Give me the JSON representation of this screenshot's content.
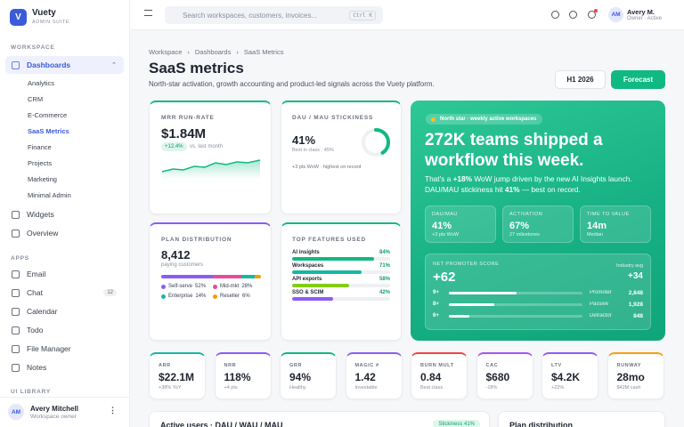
{
  "sidebar": {
    "brand": {
      "logo": "V",
      "name": "Vuety",
      "tagline": "ADMIN SUITE"
    },
    "sections": [
      {
        "title": "WORKSPACE",
        "items": [
          {
            "label": "Dashboards",
            "children": [
              "Analytics",
              "CRM",
              "E-Commerce",
              "SaaS Metrics",
              "Finance",
              "Projects",
              "Marketing",
              "Minimal Admin"
            ]
          },
          {
            "label": "Widgets"
          },
          {
            "label": "Overview"
          }
        ]
      },
      {
        "title": "APPS",
        "items": [
          {
            "label": "Email"
          },
          {
            "label": "Chat",
            "badge": 12
          },
          {
            "label": "Calendar"
          },
          {
            "label": "Todo"
          },
          {
            "label": "File Manager"
          },
          {
            "label": "Notes"
          }
        ]
      },
      {
        "title": "UI LIBRARY"
      }
    ],
    "user": {
      "initials": "AM",
      "name": "Avery Mitchell",
      "role": "Workspace owner"
    }
  },
  "topbar": {
    "search_placeholder": "Search workspaces, customers, invoices...",
    "shortcut": "Ctrl K",
    "user": {
      "initials": "AM",
      "name": "Avery M.",
      "status": "Owner · Active"
    }
  },
  "page": {
    "breadcrumb": [
      "Workspace",
      "Dashboards",
      "SaaS Metrics"
    ],
    "title": "SaaS metrics",
    "subtitle": "North-star activation, growth accounting and product-led signals across the Vuety platform.",
    "period": "H1 2026",
    "action": "Forecast"
  },
  "mrr": {
    "title": "MRR RUN-RATE",
    "value": "$1.84M",
    "change": "+12.4%",
    "note": "vs. last month"
  },
  "stickiness": {
    "title": "DAU / MAU STICKINESS",
    "value": "41%",
    "benchmark": "Best in class · 45%",
    "note": "+3 pts WoW · highest on record"
  },
  "hero": {
    "tag": "North star · weekly active workspaces",
    "headline": "272K teams shipped a workflow this week.",
    "body": [
      "That's a ",
      "+18%",
      " WoW jump driven by the new AI Insights launch. DAU/MAU stickiness hit ",
      "41%",
      " — best on record."
    ],
    "stats": [
      {
        "label": "DAU/MAU",
        "value": "41%",
        "note": "+3 pts WoW"
      },
      {
        "label": "ACTIVATION",
        "value": "67%",
        "note": "27 milestones"
      },
      {
        "label": "TIME TO VALUE",
        "value": "14m",
        "note": "Median"
      }
    ],
    "nps": {
      "title": "NET PROMOTER SCORE",
      "value": "+62",
      "benchmark_label": "Industry avg",
      "benchmark": "+34",
      "rows": [
        {
          "score": "9+",
          "label": "Promoter",
          "count": {
            "value": 2848,
            "label": "2,848"
          }
        },
        {
          "score": "8+",
          "label": "Passive",
          "count": {
            "value": 1928,
            "label": "1,928"
          }
        },
        {
          "score": "6+",
          "label": "Detractor",
          "count": {
            "value": 848,
            "label": "848"
          }
        }
      ]
    }
  },
  "plans": {
    "title": "PLAN DISTRIBUTION",
    "value": "8,412",
    "caption": "paying customers",
    "segments": [
      {
        "name": "Self-serve",
        "value": 52,
        "label": "52%",
        "color": "#8b5cf6"
      },
      {
        "name": "Mid-mkt",
        "value": 28,
        "label": "28%",
        "color": "#ec4899"
      },
      {
        "name": "Enterprise",
        "value": 14,
        "label": "14%",
        "color": "#14b8a6"
      },
      {
        "name": "Reseller",
        "value": 6,
        "label": "6%",
        "color": "#f59e0b"
      }
    ]
  },
  "features": {
    "title": "TOP FEATURES USED",
    "items": [
      {
        "name": "AI insights",
        "value": 84,
        "label": "84%",
        "color": "#10b981"
      },
      {
        "name": "Workspaces",
        "value": 71,
        "label": "71%",
        "color": "#14b8a6"
      },
      {
        "name": "API exports",
        "value": 58,
        "label": "58%",
        "color": "#84cc16"
      },
      {
        "name": "SSO & SCIM",
        "value": 42,
        "label": "42%",
        "color": "#8b5cf6"
      }
    ]
  },
  "kpis": [
    {
      "label": "ARR",
      "value": "$22.1M",
      "note": "+38% YoY",
      "color": "#14b8a6"
    },
    {
      "label": "NRR",
      "value": "118%",
      "note": "+4 pts",
      "color": "#8b5cf6"
    },
    {
      "label": "GRR",
      "value": "94%",
      "note": "Healthy",
      "color": "#10b981"
    },
    {
      "label": "MAGIC #",
      "value": "1.42",
      "note": "Investable",
      "color": "#8b5cf6"
    },
    {
      "label": "BURN MULT",
      "value": "0.84",
      "note": "Best class",
      "color": "#ef4444"
    },
    {
      "label": "CAC",
      "value": "$680",
      "note": "-18%",
      "color": "#a855f7"
    },
    {
      "label": "LTV",
      "value": "$4.2K",
      "note": "+22%",
      "color": "#8b5cf6"
    },
    {
      "label": "RUNWAY",
      "value": "28mo",
      "note": "$42M cash",
      "color": "#f59e0b"
    }
  ],
  "bottom": {
    "active_users": {
      "title": "Active users · DAU / WAU / MAU",
      "badge": "Stickiness 41%"
    },
    "plans": {
      "title": "Plan distribution"
    }
  }
}
